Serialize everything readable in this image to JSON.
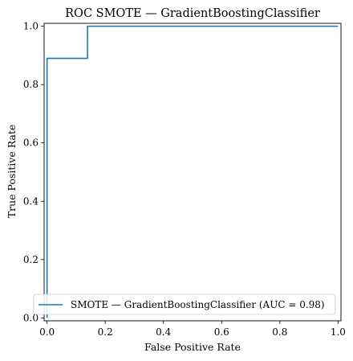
{
  "chart_data": {
    "type": "line",
    "title": "ROC SMOTE — GradientBoostingClassifier",
    "xlabel": "False Positive Rate",
    "ylabel": "True Positive Rate",
    "xlim": [
      -0.01,
      1.01
    ],
    "ylim": [
      -0.01,
      1.01
    ],
    "xticks": [
      0.0,
      0.2,
      0.4,
      0.6,
      0.8,
      1.0
    ],
    "yticks": [
      0.0,
      0.2,
      0.4,
      0.6,
      0.8,
      1.0
    ],
    "xtick_labels": [
      "0.0",
      "0.2",
      "0.4",
      "0.6",
      "0.8",
      "1.0"
    ],
    "ytick_labels": [
      "0.0",
      "0.2",
      "0.4",
      "0.6",
      "0.8",
      "1.0"
    ],
    "grid": false,
    "legend_position": "lower-right",
    "series": [
      {
        "name": "SMOTE — GradientBoostingClassifier (AUC = 0.98)",
        "color": "#1f77b4",
        "x": [
          0.0,
          0.0,
          0.0,
          0.0,
          0.139,
          0.139,
          1.0
        ],
        "y": [
          0.0,
          0.06,
          0.06,
          0.89,
          0.89,
          1.0,
          1.0
        ]
      }
    ]
  }
}
